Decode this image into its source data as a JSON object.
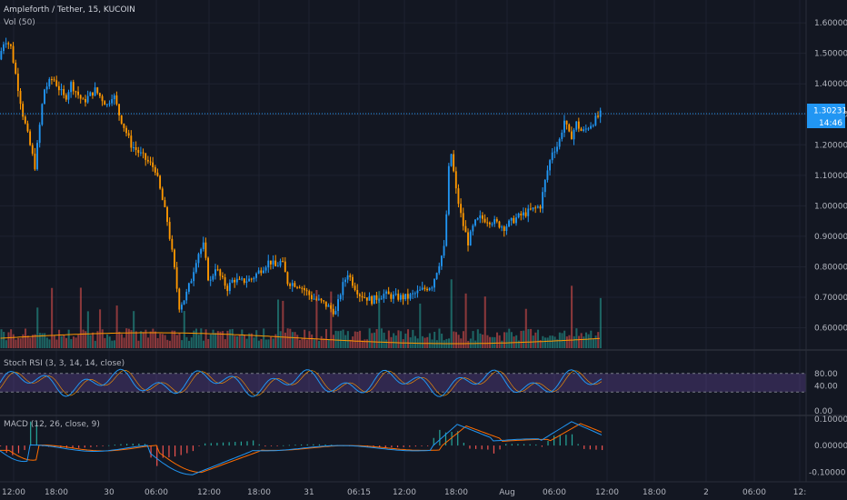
{
  "header": {
    "symbol_title": "Ampleforth / Tether, 15, KUCOIN",
    "volume_label": "Vol (50)"
  },
  "price_axis": {
    "ticks": [
      "1.60000",
      "1.50000",
      "1.40000",
      "1.30000",
      "1.20000",
      "1.10000",
      "1.00000",
      "0.90000",
      "0.80000",
      "0.70000",
      "0.60000"
    ],
    "last_price": "1.30231",
    "countdown": "14:46"
  },
  "stoch": {
    "label": "Stoch RSI (3, 3, 14, 14, close)",
    "ticks": [
      "80.00",
      "40.00",
      "0.00"
    ]
  },
  "macd": {
    "label": "MACD (12, 26, close, 9)",
    "ticks": [
      "0.10000",
      "0.00000",
      "-0.10000"
    ]
  },
  "time_axis": {
    "ticks": [
      "12:00",
      "18:00",
      "30",
      "06:00",
      "12:00",
      "18:00",
      "31",
      "06:15",
      "12:00",
      "18:00",
      "Aug",
      "06:00",
      "12:00",
      "18:00",
      "2",
      "06:00",
      "12:"
    ]
  },
  "colors": {
    "background": "#131722",
    "up": "#2196f3",
    "down": "#ff9800",
    "stoch_band": "#7e57c2",
    "macd_line": "#2196f3",
    "signal_line": "#ff6d00",
    "price_line": "#2196f3"
  },
  "chart_data": {
    "type": "candlestick",
    "ylim": [
      0.53,
      1.66
    ],
    "stoch_ylim": [
      0,
      100
    ],
    "macd_ylim": [
      -0.13,
      0.11
    ],
    "last_price": 1.30231,
    "price_path": [
      [
        0,
        1.48
      ],
      [
        0.01,
        1.55
      ],
      [
        0.02,
        1.52
      ],
      [
        0.04,
        1.3
      ],
      [
        0.06,
        1.13
      ],
      [
        0.075,
        1.38
      ],
      [
        0.09,
        1.42
      ],
      [
        0.11,
        1.35
      ],
      [
        0.12,
        1.4
      ],
      [
        0.14,
        1.34
      ],
      [
        0.16,
        1.38
      ],
      [
        0.18,
        1.33
      ],
      [
        0.19,
        1.37
      ],
      [
        0.2,
        1.3
      ],
      [
        0.22,
        1.2
      ],
      [
        0.24,
        1.16
      ],
      [
        0.26,
        1.12
      ],
      [
        0.28,
        0.95
      ],
      [
        0.29,
        0.82
      ],
      [
        0.3,
        0.67
      ],
      [
        0.31,
        0.7
      ],
      [
        0.32,
        0.76
      ],
      [
        0.33,
        0.84
      ],
      [
        0.34,
        0.87
      ],
      [
        0.35,
        0.74
      ],
      [
        0.36,
        0.8
      ],
      [
        0.37,
        0.76
      ],
      [
        0.38,
        0.73
      ],
      [
        0.39,
        0.76
      ],
      [
        0.4,
        0.75
      ],
      [
        0.42,
        0.76
      ],
      [
        0.44,
        0.8
      ],
      [
        0.45,
        0.82
      ],
      [
        0.46,
        0.8
      ],
      [
        0.47,
        0.82
      ],
      [
        0.48,
        0.75
      ],
      [
        0.5,
        0.74
      ],
      [
        0.52,
        0.7
      ],
      [
        0.54,
        0.68
      ],
      [
        0.56,
        0.65
      ],
      [
        0.57,
        0.73
      ],
      [
        0.58,
        0.78
      ],
      [
        0.59,
        0.74
      ],
      [
        0.6,
        0.71
      ],
      [
        0.62,
        0.69
      ],
      [
        0.64,
        0.71
      ],
      [
        0.66,
        0.7
      ],
      [
        0.68,
        0.7
      ],
      [
        0.7,
        0.72
      ],
      [
        0.72,
        0.74
      ],
      [
        0.73,
        0.8
      ],
      [
        0.74,
        0.86
      ],
      [
        0.745,
        1.0
      ],
      [
        0.75,
        1.2
      ],
      [
        0.76,
        1.05
      ],
      [
        0.77,
        0.95
      ],
      [
        0.78,
        0.88
      ],
      [
        0.79,
        0.94
      ],
      [
        0.8,
        0.96
      ],
      [
        0.82,
        0.95
      ],
      [
        0.84,
        0.93
      ],
      [
        0.86,
        0.96
      ],
      [
        0.88,
        0.98
      ],
      [
        0.9,
        1.0
      ],
      [
        0.91,
        1.1
      ],
      [
        0.92,
        1.18
      ],
      [
        0.93,
        1.2
      ],
      [
        0.94,
        1.28
      ],
      [
        0.95,
        1.22
      ],
      [
        0.96,
        1.27
      ],
      [
        0.97,
        1.24
      ],
      [
        0.98,
        1.26
      ],
      [
        1.0,
        1.3
      ]
    ]
  }
}
